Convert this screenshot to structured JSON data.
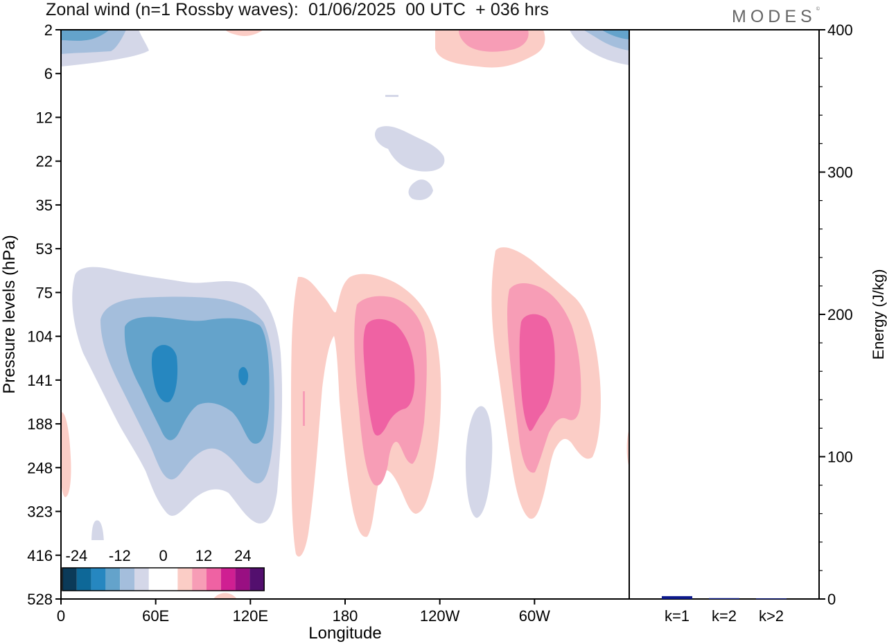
{
  "header": {
    "title": "Zonal wind (n=1 Rossby waves):  01/06/2025  00 UTC  + 036 hrs",
    "brand": "MODES",
    "brand_mark": "©"
  },
  "colors": {
    "neg": [
      "#0b3a58",
      "#0e6898",
      "#2687c0",
      "#64a3cb",
      "#a4bedc",
      "#d4d7e8"
    ],
    "zero": "#ffffff",
    "pos": [
      "#fbcdc6",
      "#f79db6",
      "#ef62a3",
      "#cf1f92",
      "#990f82",
      "#530f6e"
    ],
    "bar": "#0d1a8c"
  },
  "chart_data": [
    {
      "type": "contour",
      "xlabel": "Longitude",
      "ylabel": "Pressure levels (hPa)",
      "x_ticks": [
        "0",
        "60E",
        "120E",
        "180",
        "120W",
        "60W"
      ],
      "x_tick_degrees": [
        0,
        60,
        120,
        180,
        240,
        300
      ],
      "xlim_degrees": [
        0,
        360
      ],
      "y_ticks": [
        "2",
        "6",
        "12",
        "22",
        "35",
        "53",
        "75",
        "104",
        "141",
        "188",
        "248",
        "323",
        "416",
        "528"
      ],
      "y_scale": "model levels (top 2 hPa, bottom 528 hPa)",
      "colorbar": {
        "labels": [
          "-24",
          "-12",
          "0",
          "12",
          "24"
        ],
        "levels": 12,
        "placement": "bottom-left"
      },
      "regions": [
        {
          "sign": "negative",
          "shade": 4,
          "lon": [
            10,
            140
          ],
          "hPa": [
            58,
            350
          ],
          "note": "easterly maximum near 60E-120E, 140 hPa"
        },
        {
          "sign": "positive",
          "shade": 3,
          "lon": [
            185,
            210
          ],
          "hPa": [
            100,
            200
          ],
          "note": "westerly maximum near 200E"
        },
        {
          "sign": "positive",
          "shade": 3,
          "lon": [
            285,
            310
          ],
          "hPa": [
            100,
            190
          ],
          "note": "westerly maximum near 60W"
        },
        {
          "sign": "positive",
          "shade": 1,
          "lon": [
            150,
            175
          ],
          "hPa": [
            70,
            470
          ]
        },
        {
          "sign": "negative",
          "shade": 1,
          "lon": [
            255,
            275
          ],
          "hPa": [
            180,
            310
          ]
        }
      ]
    },
    {
      "type": "bar",
      "categories": [
        "k=1",
        "k=2",
        "k>2"
      ],
      "values": [
        2.0,
        0.6,
        0.4
      ],
      "ylabel": "Energy (J/kg)",
      "ylim": [
        0,
        400
      ],
      "y_ticks": [
        "0",
        "100",
        "200",
        "300",
        "400"
      ]
    }
  ]
}
